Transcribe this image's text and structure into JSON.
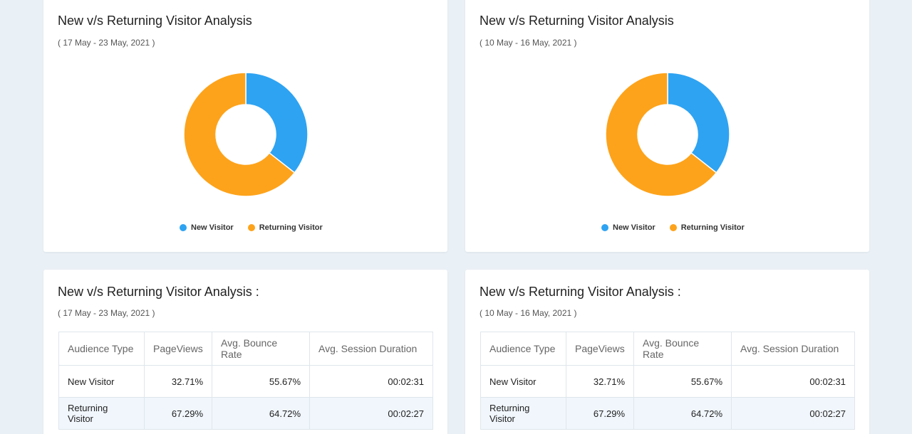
{
  "colors": {
    "new_visitor": "#2ea3f2",
    "returning_visitor": "#fda31b"
  },
  "cards": [
    {
      "title": "New v/s Returning Visitor Analysis",
      "subtitle": "( 17 May - 23 May, 2021 )",
      "chart_data": {
        "type": "pie",
        "labels": [
          "New Visitor",
          "Returning Visitor"
        ],
        "values": [
          35.6,
          64.4
        ],
        "colors": [
          "#2ea3f2",
          "#fda31b"
        ],
        "legend": "bottom"
      }
    },
    {
      "title": "New v/s Returning Visitor Analysis",
      "subtitle": "( 10 May - 16 May, 2021 )",
      "chart_data": {
        "type": "pie",
        "labels": [
          "New Visitor",
          "Returning Visitor"
        ],
        "values": [
          35.6,
          64.4
        ],
        "colors": [
          "#2ea3f2",
          "#fda31b"
        ],
        "legend": "bottom"
      }
    }
  ],
  "tables": [
    {
      "title": "New v/s Returning Visitor Analysis :",
      "subtitle": "( 17 May - 23 May, 2021 )",
      "headers": [
        "Audience Type",
        "PageViews",
        "Avg. Bounce Rate",
        "Avg. Session Duration"
      ],
      "rows": [
        [
          "New Visitor",
          "32.71%",
          "55.67%",
          "00:02:31"
        ],
        [
          "Returning Visitor",
          "67.29%",
          "64.72%",
          "00:02:27"
        ]
      ]
    },
    {
      "title": "New v/s Returning Visitor Analysis :",
      "subtitle": "( 10 May - 16 May, 2021 )",
      "headers": [
        "Audience Type",
        "PageViews",
        "Avg. Bounce Rate",
        "Avg. Session Duration"
      ],
      "rows": [
        [
          "New Visitor",
          "32.71%",
          "55.67%",
          "00:02:31"
        ],
        [
          "Returning Visitor",
          "67.29%",
          "64.72%",
          "00:02:27"
        ]
      ]
    }
  ]
}
